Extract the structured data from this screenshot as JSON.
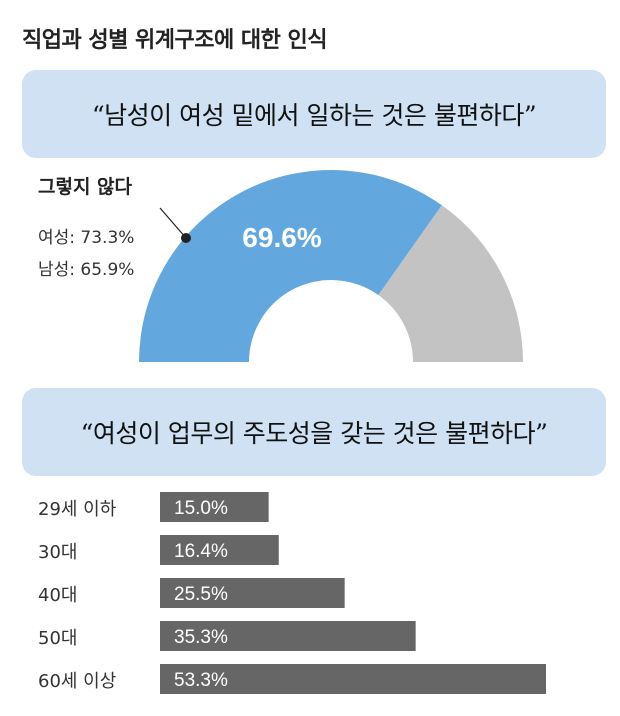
{
  "title": "직업과 성별 위계구조에 대한 인식",
  "chart_data": [
    {
      "type": "pie",
      "question": "“남성이 여성 밑에서 일하는 것은 불편하다”",
      "slices": [
        {
          "label": "그렇지 않다",
          "value": 69.6,
          "display": "69.6%",
          "color": "#62a8df"
        },
        {
          "label": "",
          "value": 30.4,
          "display": "",
          "color": "#c3c3c3"
        }
      ],
      "annotation": {
        "title": "그렇지 않다",
        "lines": [
          "여성: 73.3%",
          "남성: 65.9%"
        ]
      }
    },
    {
      "type": "bar",
      "question": "“여성이 업무의 주도성을 갖는 것은 불편하다”",
      "categories": [
        "29세 이하",
        "30대",
        "40대",
        "50대",
        "60세 이상"
      ],
      "values": [
        15.0,
        16.4,
        25.5,
        35.3,
        53.3
      ],
      "labels": [
        "15.0%",
        "16.4%",
        "25.5%",
        "35.3%",
        "53.3%"
      ],
      "color": "#666666",
      "xlim": [
        0,
        55
      ]
    }
  ]
}
